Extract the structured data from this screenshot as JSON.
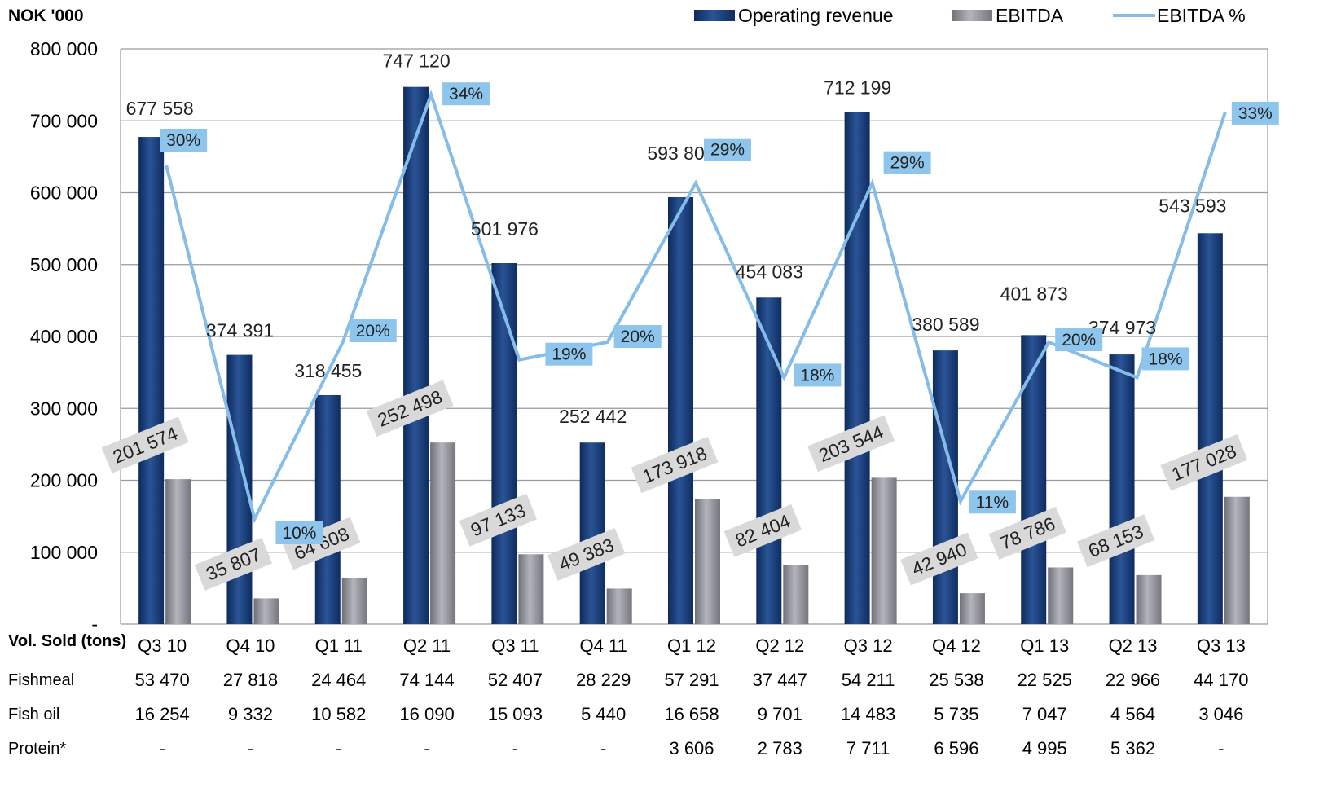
{
  "chart_data": {
    "type": "bar",
    "unit_label": "NOK '000",
    "categories": [
      "Q3 10",
      "Q4 10",
      "Q1 11",
      "Q2 11",
      "Q3 11",
      "Q4 11",
      "Q1 12",
      "Q2 12",
      "Q3 12",
      "Q4 12",
      "Q1 13",
      "Q2 13",
      "Q3 13"
    ],
    "series": [
      {
        "name": "Operating revenue",
        "type": "bar",
        "color": "#1c3f7c",
        "values": [
          677558,
          374391,
          318455,
          747120,
          501976,
          252442,
          593802,
          454083,
          712199,
          380589,
          401873,
          374973,
          543593
        ],
        "labels": [
          "677 558",
          "374 391",
          "318 455",
          "747 120",
          "501 976",
          "252 442",
          "593 802",
          "454 083",
          "712 199",
          "380 589",
          "401 873",
          "374 973",
          "543 593"
        ]
      },
      {
        "name": "EBITDA",
        "type": "bar",
        "color": "#8c8c94",
        "values": [
          201574,
          35807,
          64608,
          252498,
          97133,
          49383,
          173918,
          82404,
          203544,
          42940,
          78786,
          68153,
          177028
        ],
        "labels": [
          "201 574",
          "35 807",
          "64 608",
          "252 498",
          "97 133",
          "49 383",
          "173 918",
          "82 404",
          "203 544",
          "42 940",
          "78 786",
          "68 153",
          "177 028"
        ]
      },
      {
        "name": "EBITDA %",
        "type": "line",
        "color": "#86bde8",
        "values": [
          30,
          10,
          20,
          34,
          19,
          20,
          29,
          18,
          29,
          11,
          20,
          18,
          33
        ],
        "labels": [
          "30%",
          "10%",
          "20%",
          "34%",
          "19%",
          "20%",
          "29%",
          "18%",
          "29%",
          "11%",
          "20%",
          "18%",
          "33%"
        ]
      }
    ],
    "ylim": [
      0,
      800000
    ],
    "yticks": [
      0,
      100000,
      200000,
      300000,
      400000,
      500000,
      600000,
      700000,
      800000
    ],
    "ytick_labels": [
      "-",
      "100 000",
      "200 000",
      "300 000",
      "400 000",
      "500 000",
      "600 000",
      "700 000",
      "800 000"
    ],
    "grid": true,
    "legend_position": "top-right"
  },
  "table": {
    "header_label": "Vol. Sold (tons)",
    "rows": [
      {
        "label": "Fishmeal",
        "values": [
          "53 470",
          "27 818",
          "24 464",
          "74 144",
          "52 407",
          "28 229",
          "57 291",
          "37 447",
          "54 211",
          "25 538",
          "22 525",
          "22 966",
          "44 170"
        ]
      },
      {
        "label": "Fish oil",
        "values": [
          "16 254",
          "9 332",
          "10 582",
          "16 090",
          "15 093",
          "5 440",
          "16 658",
          "9 701",
          "14 483",
          "5 735",
          "7 047",
          "4 564",
          "3 046"
        ]
      },
      {
        "label": "Protein*",
        "values": [
          "-",
          "-",
          "-",
          "-",
          "-",
          "-",
          "3 606",
          "2 783",
          "7 711",
          "6 596",
          "4 995",
          "5 362",
          "-"
        ]
      }
    ]
  }
}
